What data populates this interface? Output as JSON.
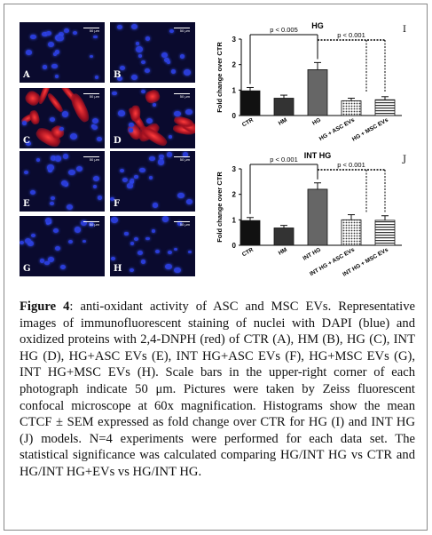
{
  "micrographs": [
    {
      "label": "A",
      "scalebar": "50 μm",
      "stain": "dapi"
    },
    {
      "label": "B",
      "scalebar": "50 μm",
      "stain": "dapi"
    },
    {
      "label": "C",
      "scalebar": "50 μm",
      "stain": "dnph"
    },
    {
      "label": "D",
      "scalebar": "50 μm",
      "stain": "dnph"
    },
    {
      "label": "E",
      "scalebar": "50 μm",
      "stain": "dapi"
    },
    {
      "label": "F",
      "scalebar": "50 μm",
      "stain": "dapi"
    },
    {
      "label": "G",
      "scalebar": "50 μm",
      "stain": "dapi"
    },
    {
      "label": "H",
      "scalebar": "50 μm",
      "stain": "dapi"
    }
  ],
  "chart_data": [
    {
      "type": "bar",
      "panel": "I",
      "title": "HG",
      "ylabel": "Fold change over CTR",
      "ylim": [
        0,
        3
      ],
      "yticks": [
        "0",
        "1",
        "2",
        "3"
      ],
      "categories": [
        "CTR",
        "HM",
        "HG",
        "HG + ASC EVs",
        "HG + MSC EVs"
      ],
      "values": [
        0.97,
        0.68,
        1.8,
        0.58,
        0.62
      ],
      "errors": [
        0.13,
        0.12,
        0.28,
        0.1,
        0.12
      ],
      "significance": [
        {
          "from": 0,
          "to": 2,
          "label": "p < 0.005",
          "style": "solid"
        },
        {
          "from": 2,
          "to": 4,
          "label": "p < 0.001",
          "style": "dashed"
        }
      ]
    },
    {
      "type": "bar",
      "panel": "J",
      "title": "INT HG",
      "ylabel": "Fold change over CTR",
      "ylim": [
        0,
        3
      ],
      "yticks": [
        "0",
        "1",
        "2",
        "3"
      ],
      "categories": [
        "CTR",
        "HM",
        "INT HG",
        "INT HG + ASC EVs",
        "INT HG + MSC EVs"
      ],
      "values": [
        0.97,
        0.68,
        2.2,
        1.0,
        0.98
      ],
      "errors": [
        0.12,
        0.1,
        0.25,
        0.2,
        0.18
      ],
      "significance": [
        {
          "from": 0,
          "to": 2,
          "label": "p < 0.001",
          "style": "solid"
        },
        {
          "from": 2,
          "to": 4,
          "label": "p < 0.001",
          "style": "dashed"
        }
      ]
    }
  ],
  "caption": {
    "heading": "Figure 4",
    "text": ": anti-oxidant activity of ASC and MSC EVs. Representative images of immunofluorescent staining of nuclei with DAPI (blue) and oxidized proteins with 2,4-DNPH (red) of CTR (A), HM (B), HG (C), INT HG (D), HG+ASC EVs (E), INT HG+ASC EVs (F), HG+MSC EVs (G), INT HG+MSC EVs (H). Scale bars in the upper-right corner of each photograph indicate 50 μm. Pictures were taken by Zeiss fluorescent confocal microscope at 60x magnification. Histograms show the mean CTCF ± SEM expressed as fold change over CTR for HG (I) and INT HG (J) models. N=4 experiments were performed for each data set. The statistical significance was calculated comparing HG/INT HG vs CTR and HG/INT HG+EVs vs HG/INT HG."
  }
}
